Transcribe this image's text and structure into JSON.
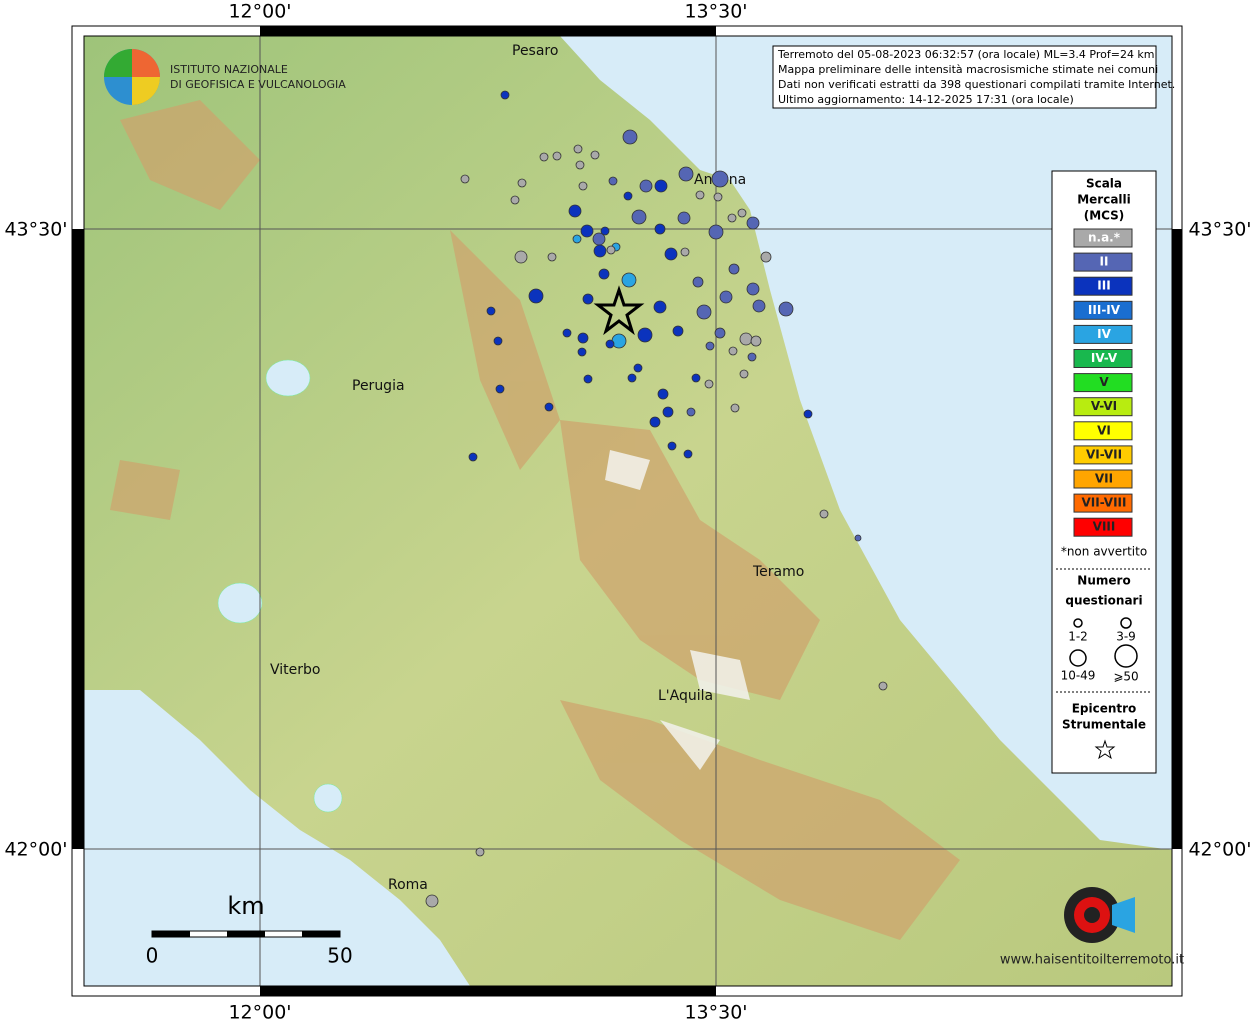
{
  "frame": {
    "lon_labels": [
      "12°00'",
      "13°30'"
    ],
    "lat_labels": [
      "43°30'",
      "42°00'"
    ]
  },
  "logo": {
    "line1": "ISTITUTO NAZIONALE",
    "line2": "DI GEOFISICA E VULCANOLOGIA"
  },
  "info": {
    "lines": [
      "Terremoto del 05-08-2023 06:32:57 (ora locale) ML=3.4 Prof=24 km",
      "Mappa preliminare delle intensità macrosismiche stimate nei comuni",
      "Dati non verificati estratti da 398 questionari compilati tramite Internet.",
      "Ultimo aggiornamento: 14-12-2025 17:31 (ora locale)"
    ]
  },
  "cities": [
    "Pesaro",
    "Ancona",
    "Perugia",
    "Teramo",
    "Viterbo",
    "L'Aquila",
    "Roma"
  ],
  "legend": {
    "title": [
      "Scala",
      "Mercalli",
      "(MCS)"
    ],
    "classes": [
      {
        "label": "n.a.*",
        "color": "#a9a9a9"
      },
      {
        "label": "II",
        "color": "#5566b4"
      },
      {
        "label": "III",
        "color": "#0b33bd"
      },
      {
        "label": "III-IV",
        "color": "#1a6ed0"
      },
      {
        "label": "IV",
        "color": "#2aa4e2"
      },
      {
        "label": "IV-V",
        "color": "#19b84e"
      },
      {
        "label": "V",
        "color": "#22dd22"
      },
      {
        "label": "V-VI",
        "color": "#b8ec10"
      },
      {
        "label": "VI",
        "color": "#ffff00"
      },
      {
        "label": "VI-VII",
        "color": "#ffcc00"
      },
      {
        "label": "VII",
        "color": "#ffa500"
      },
      {
        "label": "VII-VIII",
        "color": "#ff6a00"
      },
      {
        "label": "VIII",
        "color": "#ff0000"
      }
    ],
    "note": "*non avvertito",
    "count_title": [
      "Numero",
      "questionari"
    ],
    "counts": [
      "1-2",
      "3-9",
      "10-49",
      "⩾50"
    ],
    "epicenter": [
      "Epicentro",
      "Strumentale"
    ]
  },
  "scalebar": {
    "unit": "km",
    "labels": [
      "0",
      "50"
    ]
  },
  "brand": {
    "url": "www.haisentitoilterremoto.it"
  }
}
